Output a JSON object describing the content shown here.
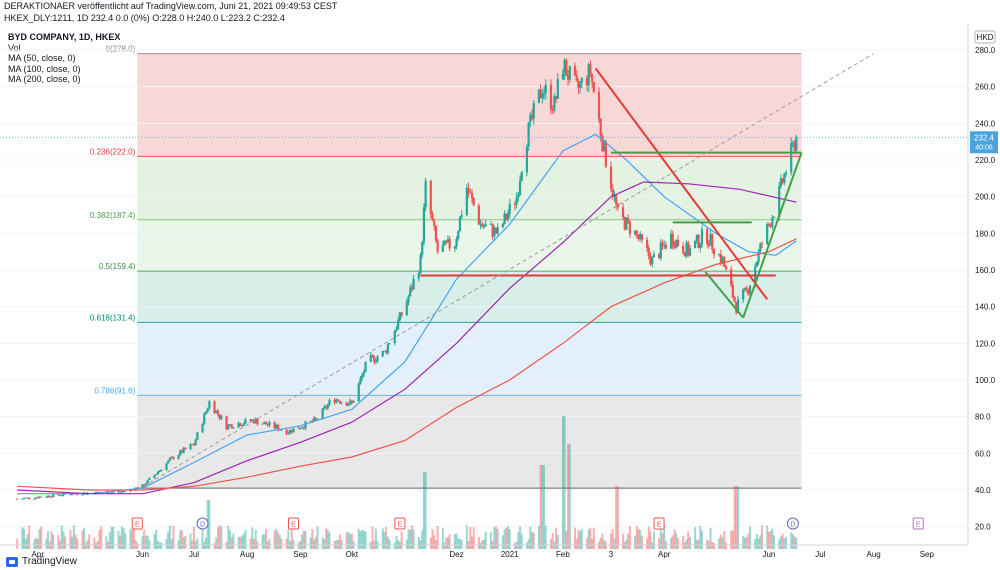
{
  "header": {
    "line1": "DERAKTIONAER veröffentlicht auf TradingView.com, Juni 21, 2021 09:49:53 CEST",
    "line2": "HKEX_DLY:1211, 1D 232.4 0.0 (0%) O:228.0 H:240.0 L:223.2 C:232.4"
  },
  "legend": {
    "title": "BYD COMPANY, 1D, HKEX",
    "vol": "Vol",
    "ma50": "MA (50, close, 0)",
    "ma100": "MA (100, close, 0)",
    "ma200": "MA (200, close, 0)"
  },
  "currency": "HKD",
  "price_badge": {
    "price": "232.4",
    "countdown": "40:08"
  },
  "footer": {
    "brand": "TradingView"
  },
  "colors": {
    "up": "#26a69a",
    "down": "#ef5350",
    "ma50": "#42a5f5",
    "ma100": "#9c27b0",
    "ma200": "#ef5350",
    "fib0": "#f8d7d7",
    "fib236": "#e3f2e1",
    "fib382": "#eaf6e9",
    "fib5": "#d7eee9",
    "fib618": "#e3effb",
    "fib786": "#e8e8e8",
    "trend_red": "#e53935",
    "trend_green": "#43a047",
    "price_badge": "#4aa3df"
  },
  "chart_data": {
    "type": "candlestick",
    "title": "BYD COMPANY, 1D, HKEX",
    "ylim": [
      10,
      292
    ],
    "y_ticks": [
      20,
      40,
      60,
      80,
      100,
      120,
      140,
      160,
      180,
      200,
      220,
      240,
      260,
      280
    ],
    "x_tick_labels": [
      "Apr",
      "Jun",
      "Jul",
      "Aug",
      "Sep",
      "Okt",
      "Dez",
      "2021",
      "Feb",
      "3",
      "Apr",
      "Jun",
      "Jul",
      "Aug",
      "Sep"
    ],
    "last_price": 232.4,
    "fibonacci_levels": [
      {
        "label": "0(278.0)",
        "ratio": 0,
        "price": 278.0
      },
      {
        "label": "0.236(222.0)",
        "ratio": 0.236,
        "price": 222.0
      },
      {
        "label": "0.382(187.4)",
        "ratio": 0.382,
        "price": 187.4
      },
      {
        "label": "0.5(159.4)",
        "ratio": 0.5,
        "price": 159.4
      },
      {
        "label": "0.618(131.4)",
        "ratio": 0.618,
        "price": 131.4
      },
      {
        "label": "0.786(91.6)",
        "ratio": 0.786,
        "price": 91.6
      }
    ],
    "fib_base_price": 41.0,
    "events": [
      {
        "label": "E",
        "date": "2020-05-29"
      },
      {
        "label": "D",
        "date": "2020-07-06"
      },
      {
        "label": "E",
        "date": "2020-08-28"
      },
      {
        "label": "E",
        "date": "2020-10-29"
      },
      {
        "label": "E",
        "date": "2021-03-29"
      },
      {
        "label": "D",
        "date": "2021-06-15"
      },
      {
        "label": "E",
        "date": "2021-08-27"
      }
    ],
    "series": [
      {
        "name": "BYD COMPANY",
        "kind": "close",
        "points": [
          [
            "2020-03-20",
            35
          ],
          [
            "2020-04-20",
            38
          ],
          [
            "2020-05-20",
            39
          ],
          [
            "2020-06-01",
            42
          ],
          [
            "2020-06-19",
            58
          ],
          [
            "2020-07-01",
            65
          ],
          [
            "2020-07-10",
            88
          ],
          [
            "2020-07-20",
            75
          ],
          [
            "2020-08-05",
            78
          ],
          [
            "2020-08-25",
            72
          ],
          [
            "2020-09-10",
            78
          ],
          [
            "2020-09-20",
            90
          ],
          [
            "2020-10-01",
            87
          ],
          [
            "2020-10-10",
            110
          ],
          [
            "2020-10-20",
            115
          ],
          [
            "2020-11-01",
            140
          ],
          [
            "2020-11-10",
            165
          ],
          [
            "2020-11-13",
            205
          ],
          [
            "2020-11-20",
            170
          ],
          [
            "2020-11-30",
            175
          ],
          [
            "2020-12-07",
            205
          ],
          [
            "2020-12-15",
            185
          ],
          [
            "2020-12-25",
            180
          ],
          [
            "2021-01-05",
            200
          ],
          [
            "2021-01-10",
            230
          ],
          [
            "2021-01-20",
            260
          ],
          [
            "2021-01-27",
            250
          ],
          [
            "2021-02-01",
            272
          ],
          [
            "2021-02-09",
            258
          ],
          [
            "2021-02-17",
            268
          ],
          [
            "2021-02-25",
            225
          ],
          [
            "2021-03-05",
            190
          ],
          [
            "2021-03-15",
            180
          ],
          [
            "2021-03-25",
            165
          ],
          [
            "2021-04-05",
            178
          ],
          [
            "2021-04-15",
            170
          ],
          [
            "2021-04-25",
            180
          ],
          [
            "2021-05-05",
            165
          ],
          [
            "2021-05-13",
            140
          ],
          [
            "2021-05-20",
            150
          ],
          [
            "2021-05-27",
            172
          ],
          [
            "2021-06-05",
            195
          ],
          [
            "2021-06-11",
            215
          ],
          [
            "2021-06-17",
            232.4
          ]
        ]
      },
      {
        "name": "MA (50, close, 0)",
        "points": [
          [
            "2020-03-20",
            38
          ],
          [
            "2020-05-01",
            38
          ],
          [
            "2020-06-01",
            41
          ],
          [
            "2020-07-01",
            55
          ],
          [
            "2020-08-01",
            70
          ],
          [
            "2020-09-01",
            75
          ],
          [
            "2020-10-01",
            84
          ],
          [
            "2020-11-01",
            110
          ],
          [
            "2020-12-01",
            155
          ],
          [
            "2021-01-01",
            185
          ],
          [
            "2021-02-01",
            225
          ],
          [
            "2021-02-20",
            234
          ],
          [
            "2021-03-10",
            220
          ],
          [
            "2021-04-01",
            200
          ],
          [
            "2021-05-01",
            180
          ],
          [
            "2021-05-20",
            170
          ],
          [
            "2021-06-05",
            168
          ],
          [
            "2021-06-17",
            176
          ]
        ]
      },
      {
        "name": "MA (100, close, 0)",
        "points": [
          [
            "2020-03-20",
            40
          ],
          [
            "2020-05-01",
            38
          ],
          [
            "2020-06-01",
            38
          ],
          [
            "2020-07-01",
            44
          ],
          [
            "2020-08-01",
            56
          ],
          [
            "2020-09-01",
            66
          ],
          [
            "2020-10-01",
            77
          ],
          [
            "2020-11-01",
            95
          ],
          [
            "2020-12-01",
            120
          ],
          [
            "2021-01-01",
            150
          ],
          [
            "2021-02-01",
            175
          ],
          [
            "2021-03-01",
            200
          ],
          [
            "2021-03-20",
            208
          ],
          [
            "2021-04-15",
            207
          ],
          [
            "2021-05-15",
            204
          ],
          [
            "2021-06-17",
            197
          ]
        ]
      },
      {
        "name": "MA (200, close, 0)",
        "points": [
          [
            "2020-03-20",
            42
          ],
          [
            "2020-05-01",
            40
          ],
          [
            "2020-06-01",
            40
          ],
          [
            "2020-07-01",
            42
          ],
          [
            "2020-08-01",
            47
          ],
          [
            "2020-09-01",
            53
          ],
          [
            "2020-10-01",
            58
          ],
          [
            "2020-11-01",
            67
          ],
          [
            "2020-12-01",
            85
          ],
          [
            "2021-01-01",
            100
          ],
          [
            "2021-02-01",
            120
          ],
          [
            "2021-03-01",
            140
          ],
          [
            "2021-04-01",
            153
          ],
          [
            "2021-05-01",
            163
          ],
          [
            "2021-06-01",
            170
          ],
          [
            "2021-06-17",
            177
          ]
        ]
      }
    ],
    "volume": [
      [
        "2020-07-10",
        0.35
      ],
      [
        "2020-11-13",
        0.55
      ],
      [
        "2021-01-20",
        0.6
      ],
      [
        "2021-02-01",
        0.95
      ],
      [
        "2021-02-05",
        0.75
      ],
      [
        "2021-03-05",
        0.45
      ],
      [
        "2021-05-13",
        0.45
      ]
    ],
    "trendlines": [
      {
        "color": "red",
        "from": [
          "2020-11-10",
          157
        ],
        "to": [
          "2021-06-05",
          157
        ]
      },
      {
        "color": "red",
        "from": [
          "2021-02-20",
          270
        ],
        "to": [
          "2021-05-31",
          144
        ]
      },
      {
        "color": "green",
        "from": [
          "2021-03-01",
          224
        ],
        "to": [
          "2021-06-20",
          224
        ]
      },
      {
        "color": "green",
        "from": [
          "2021-04-06",
          186
        ],
        "to": [
          "2021-05-22",
          186
        ]
      },
      {
        "color": "green",
        "from": [
          "2021-05-17",
          134
        ],
        "to": [
          "2021-06-20",
          224
        ]
      },
      {
        "color": "green",
        "from": [
          "2021-05-17",
          134
        ],
        "to": [
          "2021-04-25",
          159
        ]
      },
      {
        "color": "dashed",
        "from": [
          "2020-05-29",
          40
        ],
        "to": [
          "2021-08-01",
          278
        ]
      }
    ]
  }
}
